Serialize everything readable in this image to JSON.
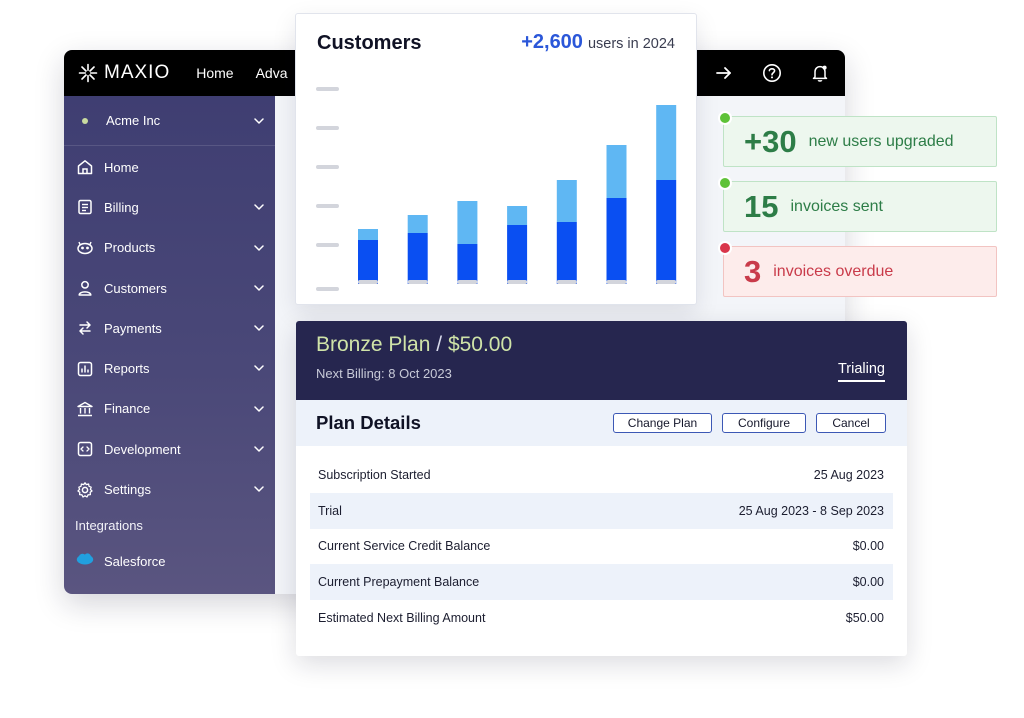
{
  "app": {
    "brand": "MAXIO",
    "nav": [
      "Home",
      "Adva"
    ],
    "org": "Acme Inc",
    "menu": [
      {
        "label": "Home",
        "icon": "home-icon",
        "chevron": false
      },
      {
        "label": "Billing",
        "icon": "billing-icon",
        "chevron": true
      },
      {
        "label": "Products",
        "icon": "products-icon",
        "chevron": true
      },
      {
        "label": "Customers",
        "icon": "customers-icon",
        "chevron": true
      },
      {
        "label": "Payments",
        "icon": "payments-icon",
        "chevron": true
      },
      {
        "label": "Reports",
        "icon": "reports-icon",
        "chevron": true
      },
      {
        "label": "Finance",
        "icon": "finance-icon",
        "chevron": true
      },
      {
        "label": "Development",
        "icon": "development-icon",
        "chevron": true
      },
      {
        "label": "Settings",
        "icon": "settings-icon",
        "chevron": true
      }
    ],
    "integrations_label": "Integrations",
    "integration": "Salesforce"
  },
  "chart_card": {
    "title": "Customers",
    "stat_value": "+2,600",
    "stat_text": "users in 2024"
  },
  "chart_data": {
    "type": "bar",
    "stacked": true,
    "title": "Customers",
    "categories": [
      "",
      "",
      "",
      "",
      "",
      "",
      ""
    ],
    "series": [
      {
        "name": "base",
        "color": "#0a4ff2",
        "values": [
          44,
          51,
          40,
          59,
          62,
          86,
          104
        ]
      },
      {
        "name": "added",
        "color": "#5fb7f3",
        "values": [
          11,
          18,
          43,
          19,
          42,
          53,
          75
        ]
      }
    ],
    "ylim": [
      0,
      195
    ],
    "yticks": [
      0,
      39,
      78,
      117,
      156,
      195
    ],
    "ytick_labels": [
      "",
      "",
      "",
      "",
      "",
      ""
    ]
  },
  "badges": [
    {
      "value": "+30",
      "text": "new users upgraded",
      "tone": "green",
      "dot": "#5ec238"
    },
    {
      "value": "15",
      "text": "invoices sent",
      "tone": "green",
      "dot": "#5ec238"
    },
    {
      "value": "3",
      "text": "invoices overdue",
      "tone": "red",
      "dot": "#d9364b"
    }
  ],
  "plan": {
    "name": "Bronze Plan",
    "separator": "/",
    "price": "$50.00",
    "next_billing_label": "Next Billing:",
    "next_billing_date": "8 Oct 2023",
    "status": "Trialing",
    "details_title": "Plan Details",
    "buttons": {
      "change": "Change Plan",
      "configure": "Configure",
      "cancel": "Cancel"
    },
    "rows": [
      {
        "label": "Subscription Started",
        "value": "25 Aug 2023"
      },
      {
        "label": "Trial",
        "value": "25 Aug 2023 - 8 Sep 2023"
      },
      {
        "label": "Current Service Credit Balance",
        "value": "$0.00"
      },
      {
        "label": "Current Prepayment Balance",
        "value": "$0.00"
      },
      {
        "label": "Estimated Next Billing Amount",
        "value": "$50.00"
      }
    ]
  }
}
